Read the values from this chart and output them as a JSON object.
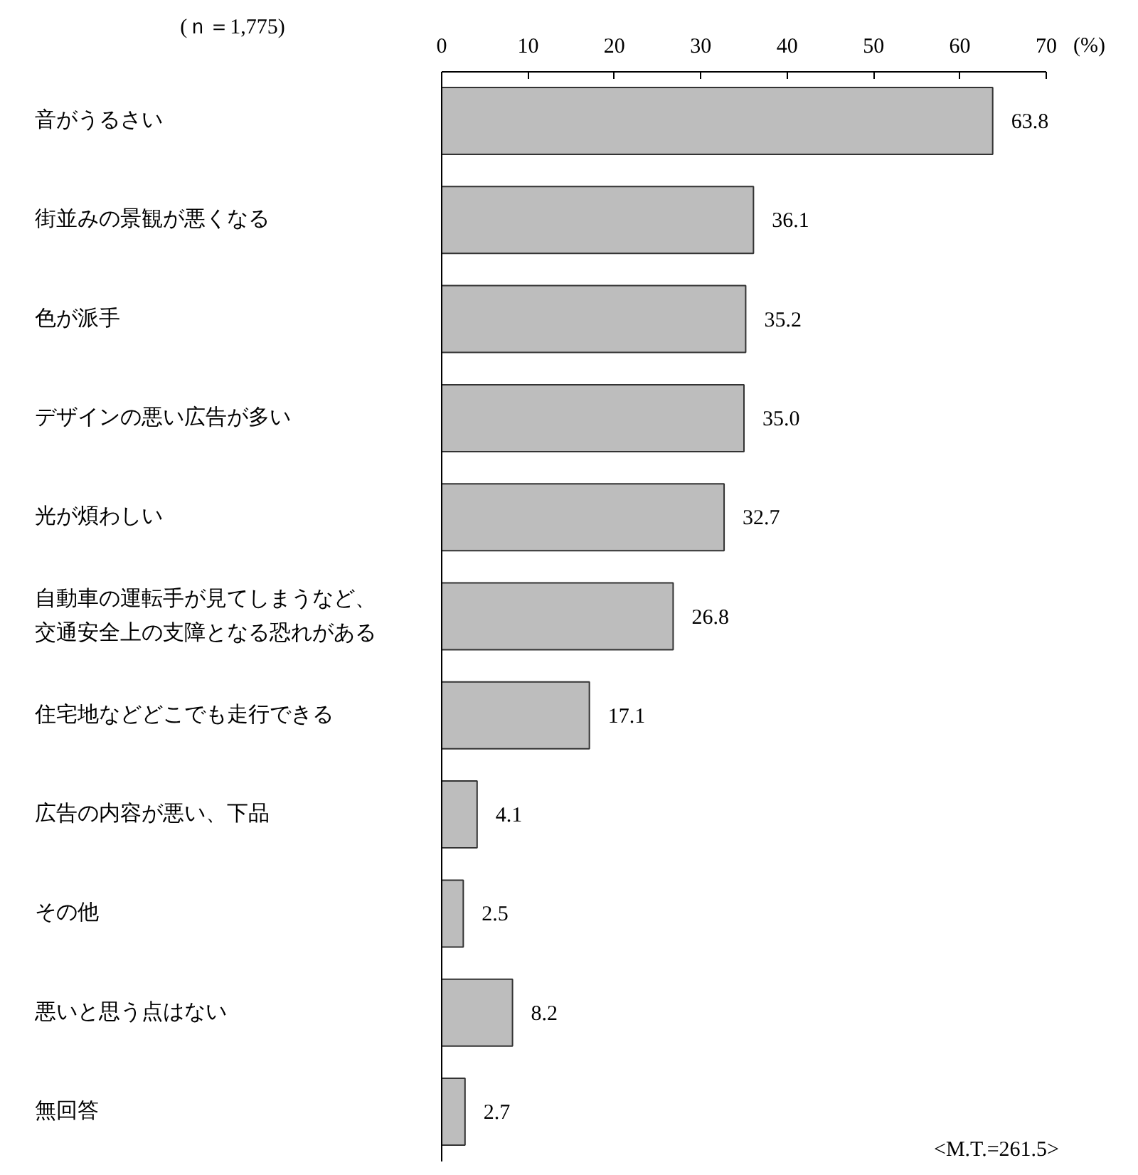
{
  "chart_data": {
    "type": "bar",
    "orientation": "horizontal",
    "categories": [
      "音がうるさい",
      "街並みの景観が悪くなる",
      "色が派手",
      "デザインの悪い広告が多い",
      "光が煩わしい",
      "自動車の運転手が見てしまうなど、交通安全上の支障となる恐れがある",
      "住宅地などどこでも走行できる",
      "広告の内容が悪い、下品",
      "その他",
      "悪いと思う点はない",
      "無回答"
    ],
    "values": [
      63.8,
      36.1,
      35.2,
      35.0,
      32.7,
      26.8,
      17.1,
      4.1,
      2.5,
      8.2,
      2.7
    ],
    "value_labels": [
      "63.8",
      "36.1",
      "35.2",
      "35.0",
      "32.7",
      "26.8",
      "17.1",
      "4.1",
      "2.5",
      "8.2",
      "2.7"
    ],
    "color": "#bdbdbd",
    "xlim": [
      0,
      70
    ],
    "xticks": [
      0,
      10,
      20,
      30,
      40,
      50,
      60,
      70
    ],
    "xlabel": "(%)",
    "grid": false,
    "annotations": [
      "(ｎ＝1,775)",
      "<M.T.=261.5>"
    ]
  }
}
